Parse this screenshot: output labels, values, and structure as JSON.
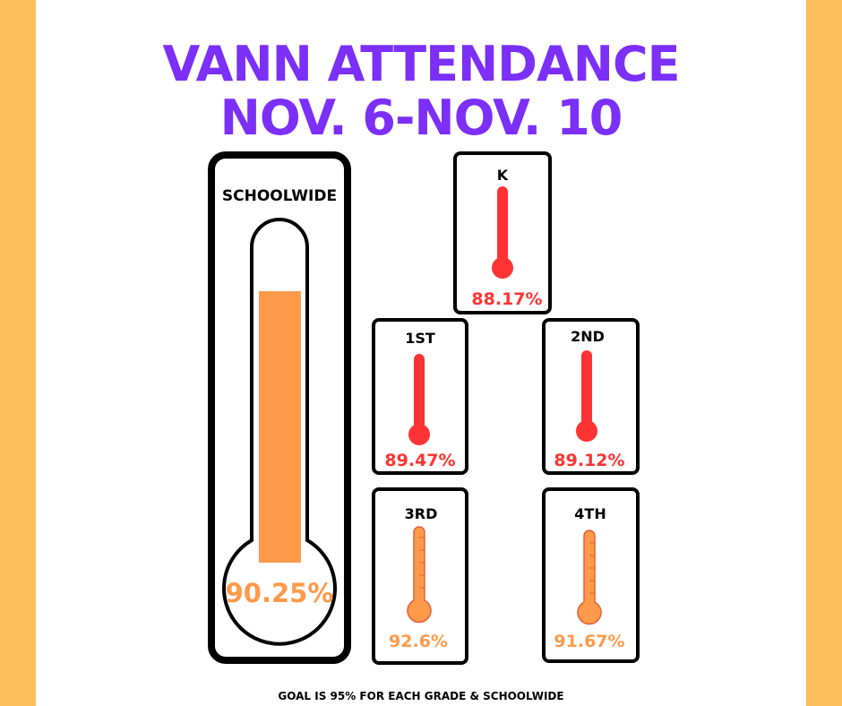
{
  "header": {
    "title_lines": [
      "VANN ATTENDANCE",
      "NOV. 6-NOV. 10"
    ]
  },
  "schoolwide": {
    "label": "SCHOOLWIDE",
    "value": "90.25%"
  },
  "grades": [
    {
      "label": "K",
      "value": "88.17%"
    },
    {
      "label": "1ST",
      "value": "89.47%"
    },
    {
      "label": "2ND",
      "value": "89.12%"
    },
    {
      "label": "3RD",
      "value": "92.6%"
    },
    {
      "label": "4TH",
      "value": "91.67%"
    }
  ],
  "footer": "GOAL IS 95% FOR EACH GRADE & SCHOOLWIDE"
}
